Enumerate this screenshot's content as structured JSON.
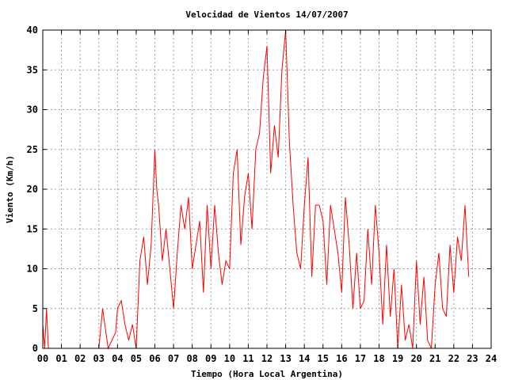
{
  "chart_data": {
    "type": "line",
    "title": "Velocidad de Vientos 14/07/2007",
    "xlabel": "Tiempo (Hora Local Argentina)",
    "ylabel": "Viento (Km/h)",
    "xlim": [
      0,
      24
    ],
    "ylim": [
      0,
      40
    ],
    "x_ticks": [
      "00",
      "01",
      "02",
      "03",
      "04",
      "05",
      "06",
      "07",
      "08",
      "09",
      "10",
      "11",
      "12",
      "13",
      "14",
      "15",
      "16",
      "17",
      "18",
      "19",
      "20",
      "21",
      "22",
      "23",
      "24"
    ],
    "y_ticks": [
      "0",
      "5",
      "10",
      "15",
      "20",
      "25",
      "30",
      "35",
      "40"
    ],
    "grid": true,
    "line_color": "#ff0000",
    "series": [
      {
        "x": [
          0.0,
          0.1,
          0.2,
          0.3,
          0.4,
          0.5,
          1.0,
          2.0,
          3.0,
          3.2,
          3.5,
          3.9,
          4.0,
          4.2,
          4.4,
          4.6,
          4.8,
          5.0,
          5.2,
          5.4,
          5.6,
          5.8,
          6.0,
          6.1,
          6.2,
          6.4,
          6.6,
          6.8,
          7.0,
          7.2,
          7.4,
          7.6,
          7.8,
          8.0,
          8.2,
          8.4,
          8.6,
          8.8,
          9.0,
          9.2,
          9.4,
          9.6,
          9.8,
          10.0,
          10.2,
          10.4,
          10.6,
          10.8,
          11.0,
          11.2,
          11.4,
          11.6,
          11.8,
          12.0,
          12.2,
          12.4,
          12.6,
          12.8,
          13.0,
          13.2,
          13.4,
          13.6,
          13.8,
          14.0,
          14.2,
          14.4,
          14.6,
          14.8,
          15.0,
          15.2,
          15.4,
          15.6,
          15.8,
          16.0,
          16.2,
          16.4,
          16.6,
          16.8,
          17.0,
          17.2,
          17.4,
          17.6,
          17.8,
          18.0,
          18.2,
          18.4,
          18.6,
          18.8,
          19.0,
          19.2,
          19.4,
          19.6,
          19.8,
          20.0,
          20.2,
          20.4,
          20.6,
          20.8,
          21.0,
          21.2,
          21.4,
          21.6,
          21.8,
          22.0,
          22.2,
          22.4,
          22.6,
          22.8
        ],
        "y": [
          3,
          0,
          5,
          0,
          0,
          0,
          0,
          0,
          0,
          5,
          0,
          2,
          5,
          6,
          3,
          1,
          3,
          0,
          11,
          14,
          8,
          13,
          25,
          20,
          18,
          11,
          15,
          10,
          5,
          12,
          18,
          15,
          19,
          10,
          13,
          16,
          7,
          18,
          10,
          18,
          12,
          8,
          11,
          10,
          22,
          25,
          13,
          19,
          22,
          15,
          25,
          27,
          34,
          38,
          22,
          28,
          24,
          35,
          40,
          26,
          18,
          12,
          10,
          18,
          24,
          9,
          18,
          18,
          16,
          8,
          18,
          15,
          12,
          7,
          19,
          13,
          5,
          12,
          5,
          6,
          15,
          8,
          18,
          12,
          3,
          13,
          4,
          10,
          0,
          8,
          1,
          3,
          0,
          11,
          3,
          9,
          1,
          0,
          8,
          12,
          5,
          4,
          13,
          7,
          14,
          11,
          18,
          9
        ]
      }
    ]
  }
}
